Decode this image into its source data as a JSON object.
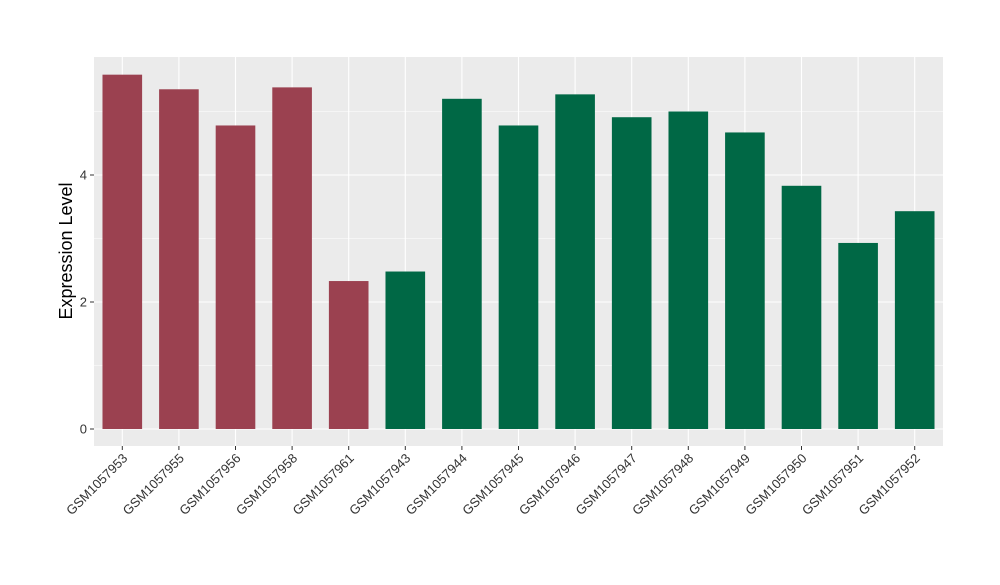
{
  "chart_data": {
    "type": "bar",
    "title": "",
    "xlabel": "",
    "ylabel": "Expression Level",
    "ylim": [
      0,
      5.8
    ],
    "yticks": [
      0,
      2,
      4
    ],
    "grid": true,
    "legend": "none",
    "categories": [
      "GSM1057953",
      "GSM1057955",
      "GSM1057956",
      "GSM1057958",
      "GSM1057961",
      "GSM1057943",
      "GSM1057944",
      "GSM1057945",
      "GSM1057946",
      "GSM1057947",
      "GSM1057948",
      "GSM1057949",
      "GSM1057950",
      "GSM1057951",
      "GSM1057952"
    ],
    "values": [
      5.58,
      5.35,
      4.78,
      5.38,
      2.33,
      2.48,
      5.2,
      4.78,
      5.27,
      4.91,
      5.0,
      4.67,
      3.83,
      2.93,
      3.43
    ],
    "groups": [
      "a",
      "a",
      "a",
      "a",
      "a",
      "b",
      "b",
      "b",
      "b",
      "b",
      "b",
      "b",
      "b",
      "b",
      "b"
    ],
    "colors": {
      "a": "#9b4150",
      "b": "#006845"
    },
    "panel_background": "#ebebeb",
    "grid_color": "#ffffff"
  }
}
